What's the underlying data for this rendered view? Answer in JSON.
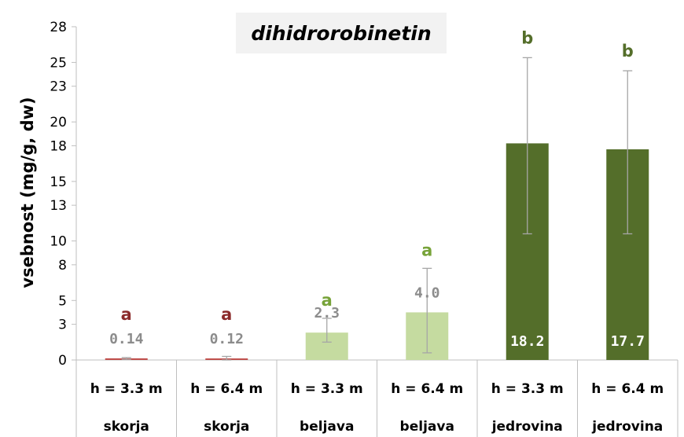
{
  "chart_data": {
    "type": "bar",
    "title": "dihidrorobinetin",
    "ylabel": "vsebnost (mg/g, dw)",
    "xlabel": "",
    "ylim": [
      0,
      28
    ],
    "yticks": [
      0,
      3,
      5,
      8,
      10,
      13,
      15,
      18,
      20,
      23,
      25,
      28
    ],
    "categories": [
      {
        "height": "h = 3.3 m",
        "tissue": "skorja"
      },
      {
        "height": "h = 6.4 m",
        "tissue": "skorja"
      },
      {
        "height": "h = 3.3 m",
        "tissue": "beljava"
      },
      {
        "height": "h = 6.4 m",
        "tissue": "beljava"
      },
      {
        "height": "h = 3.3 m",
        "tissue": "jedrovina"
      },
      {
        "height": "h = 6.4 m",
        "tissue": "jedrovina"
      }
    ],
    "values": [
      0.14,
      0.12,
      2.3,
      4.0,
      18.2,
      17.7
    ],
    "value_labels": [
      "0.14",
      "0.12",
      "2.3",
      "4.0",
      "18.2",
      "17.7"
    ],
    "error_low": [
      0.05,
      0.0,
      1.5,
      0.6,
      10.6,
      10.6
    ],
    "error_high": [
      0.2,
      0.3,
      3.5,
      7.7,
      25.4,
      24.3
    ],
    "significance": [
      "a",
      "a",
      "a",
      "a",
      "b",
      "b"
    ],
    "bar_colors": [
      "#c0504d",
      "#c0504d",
      "#c5dba0",
      "#c5dba0",
      "#546e2a",
      "#546e2a"
    ],
    "sig_colors": [
      "#8b2a2a",
      "#8b2a2a",
      "#77a339",
      "#77a339",
      "#546e2a",
      "#546e2a"
    ],
    "grid": false,
    "legend": "none"
  }
}
